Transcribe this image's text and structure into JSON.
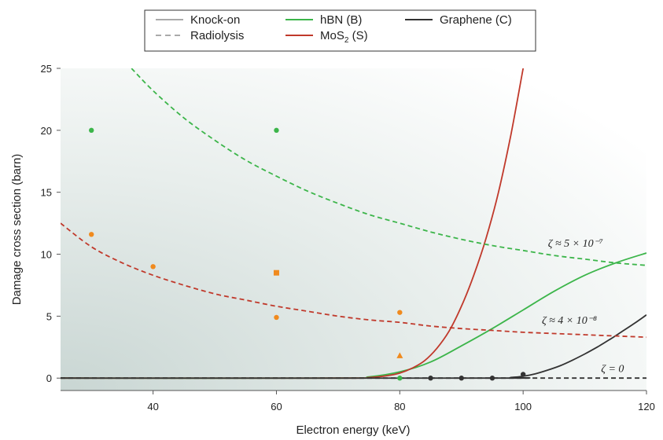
{
  "chart_data": {
    "type": "line",
    "title": "",
    "xlabel": "Electron energy (keV)",
    "ylabel": "Damage cross section (barn)",
    "xlim": [
      25,
      120
    ],
    "ylim": [
      -1,
      25
    ],
    "xticks": [
      "40",
      "60",
      "80",
      "100",
      "120"
    ],
    "xtick_values": [
      40,
      60,
      80,
      100,
      120
    ],
    "yticks": [
      "0",
      "5",
      "10",
      "15",
      "20",
      "25"
    ],
    "ytick_values": [
      0,
      5,
      10,
      15,
      20,
      25
    ],
    "legend": [
      {
        "label_pre": "Knock-on",
        "label_sub": "",
        "label_post": "",
        "color": "#aaaaaa",
        "dash": false
      },
      {
        "label_pre": "Radiolysis",
        "label_sub": "",
        "label_post": "",
        "color": "#aaaaaa",
        "dash": true
      },
      {
        "label_pre": "hBN (B)",
        "label_sub": "",
        "label_post": "",
        "color": "#3cb54a",
        "dash": false
      },
      {
        "label_pre": "MoS",
        "label_sub": "2",
        "label_post": " (S)",
        "color": "#c0392b",
        "dash": false
      },
      {
        "label_pre": "Graphene (C)",
        "label_sub": "",
        "label_post": "",
        "color": "#333333",
        "dash": false
      }
    ],
    "series": [
      {
        "kind": "knock-on",
        "color": "#3cb54a",
        "dash": false,
        "x": [
          25,
          70,
          75,
          80,
          85,
          90,
          95,
          100,
          105,
          110,
          115,
          120
        ],
        "y": [
          0,
          0,
          0.1,
          0.5,
          1.3,
          2.6,
          4.0,
          5.5,
          7.0,
          8.3,
          9.3,
          10.1
        ]
      },
      {
        "kind": "knock-on",
        "color": "#c0392b",
        "dash": false,
        "x": [
          25,
          70,
          75,
          78,
          80,
          82,
          84,
          86,
          88,
          90,
          92,
          94,
          96,
          98,
          100
        ],
        "y": [
          0,
          0,
          0.05,
          0.2,
          0.4,
          0.8,
          1.4,
          2.4,
          3.8,
          5.8,
          8.3,
          11.3,
          15.0,
          19.6,
          25.0
        ]
      },
      {
        "kind": "knock-on",
        "color": "#333333",
        "dash": false,
        "x": [
          25,
          95,
          98,
          100,
          102,
          104,
          106,
          108,
          110,
          112,
          114,
          116,
          118,
          120
        ],
        "y": [
          0,
          0,
          0.05,
          0.15,
          0.35,
          0.65,
          1.0,
          1.45,
          1.95,
          2.5,
          3.1,
          3.75,
          4.4,
          5.1
        ]
      },
      {
        "kind": "radiolysis",
        "color": "#3cb54a",
        "dash": true,
        "x": [
          36.5,
          40,
          45,
          50,
          55,
          60,
          65,
          70,
          75,
          80,
          85,
          90,
          95,
          100,
          105,
          110,
          115,
          120
        ],
        "y": [
          25.0,
          23.2,
          21.0,
          19.2,
          17.6,
          16.3,
          15.1,
          14.1,
          13.2,
          12.5,
          11.8,
          11.2,
          10.7,
          10.3,
          9.9,
          9.6,
          9.3,
          9.1
        ]
      },
      {
        "kind": "radiolysis",
        "color": "#c0392b",
        "dash": true,
        "x": [
          25,
          30,
          35,
          40,
          45,
          50,
          55,
          60,
          65,
          70,
          75,
          80,
          85,
          90,
          95,
          100,
          105,
          110,
          115,
          120
        ],
        "y": [
          12.5,
          10.6,
          9.3,
          8.3,
          7.5,
          6.8,
          6.3,
          5.8,
          5.4,
          5.0,
          4.7,
          4.5,
          4.2,
          4.0,
          3.85,
          3.7,
          3.6,
          3.5,
          3.4,
          3.3
        ]
      },
      {
        "kind": "radiolysis",
        "color": "#333333",
        "dash": true,
        "x": [
          25,
          120
        ],
        "y": [
          0,
          0
        ]
      }
    ],
    "points": [
      {
        "x": 30,
        "y": 20.0,
        "color": "#3cb54a",
        "shape": "circle"
      },
      {
        "x": 60,
        "y": 20.0,
        "color": "#3cb54a",
        "shape": "circle"
      },
      {
        "x": 30,
        "y": 11.6,
        "color": "#f08a1e",
        "shape": "circle"
      },
      {
        "x": 40,
        "y": 9.0,
        "color": "#f08a1e",
        "shape": "circle"
      },
      {
        "x": 60,
        "y": 8.5,
        "color": "#f08a1e",
        "shape": "square"
      },
      {
        "x": 60,
        "y": 4.9,
        "color": "#f08a1e",
        "shape": "circle"
      },
      {
        "x": 80,
        "y": 5.3,
        "color": "#f08a1e",
        "shape": "circle"
      },
      {
        "x": 80,
        "y": 1.8,
        "color": "#f08a1e",
        "shape": "triangle"
      },
      {
        "x": 80,
        "y": 0.0,
        "color": "#3cb54a",
        "shape": "circle"
      },
      {
        "x": 85,
        "y": 0.0,
        "color": "#333333",
        "shape": "circle"
      },
      {
        "x": 90,
        "y": 0.0,
        "color": "#333333",
        "shape": "circle"
      },
      {
        "x": 95,
        "y": 0.0,
        "color": "#333333",
        "shape": "circle"
      },
      {
        "x": 100,
        "y": 0.3,
        "color": "#333333",
        "shape": "circle"
      }
    ],
    "annotations": [
      {
        "text": "ζ ≈ 5 × 10⁻⁷",
        "x": 108.5,
        "y": 10.6
      },
      {
        "text": "ζ ≈ 4 × 10⁻⁸",
        "x": 107.5,
        "y": 4.4
      },
      {
        "text": "ζ = 0",
        "x": 114.5,
        "y": 0.5
      }
    ]
  }
}
